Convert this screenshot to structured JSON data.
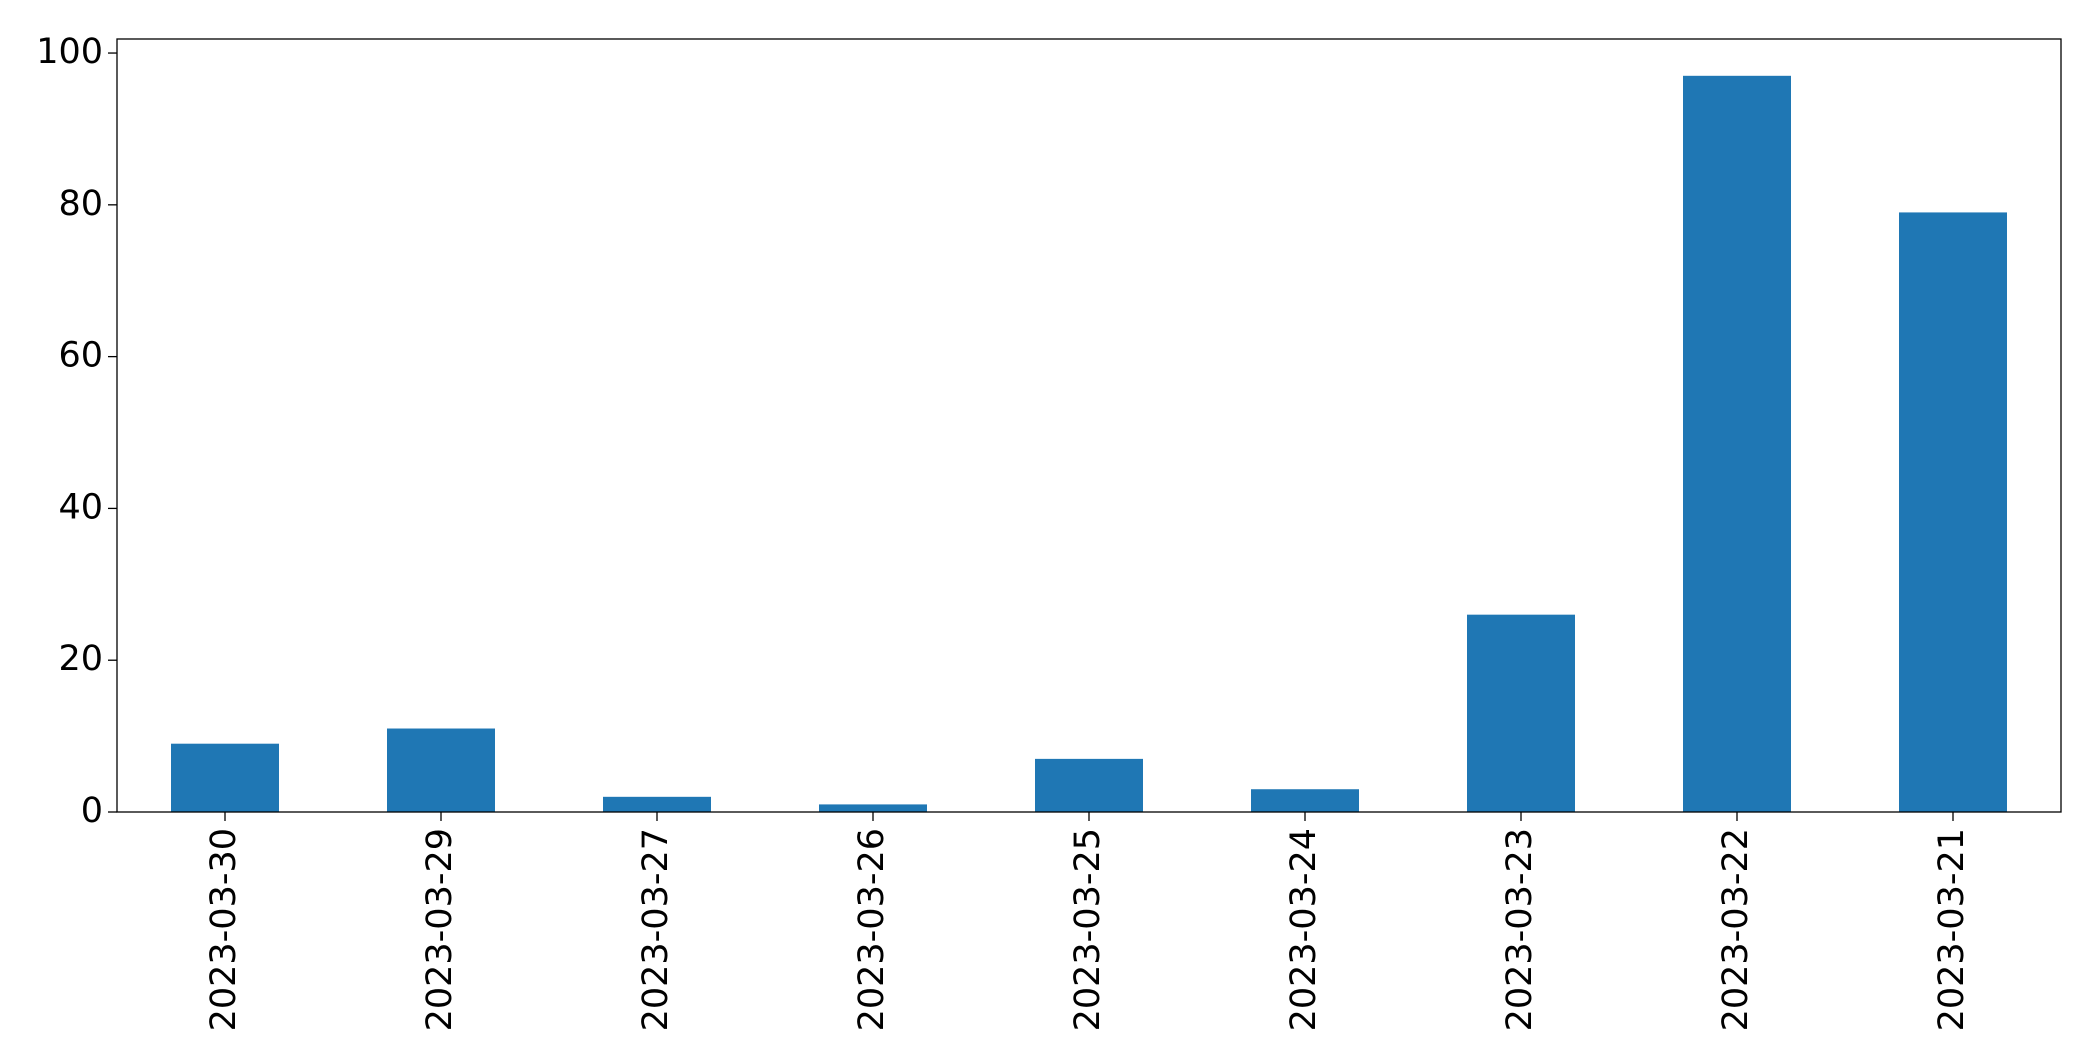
{
  "chart_data": {
    "type": "bar",
    "categories": [
      "2023-03-30",
      "2023-03-29",
      "2023-03-27",
      "2023-03-26",
      "2023-03-25",
      "2023-03-24",
      "2023-03-23",
      "2023-03-22",
      "2023-03-21"
    ],
    "values": [
      9,
      11,
      2,
      1,
      7,
      3,
      26,
      97,
      79
    ],
    "color": "#1f77b4",
    "ylim": [
      0,
      101.85
    ],
    "yticks": [
      0,
      20,
      40,
      60,
      80,
      100
    ],
    "grid": false
  }
}
